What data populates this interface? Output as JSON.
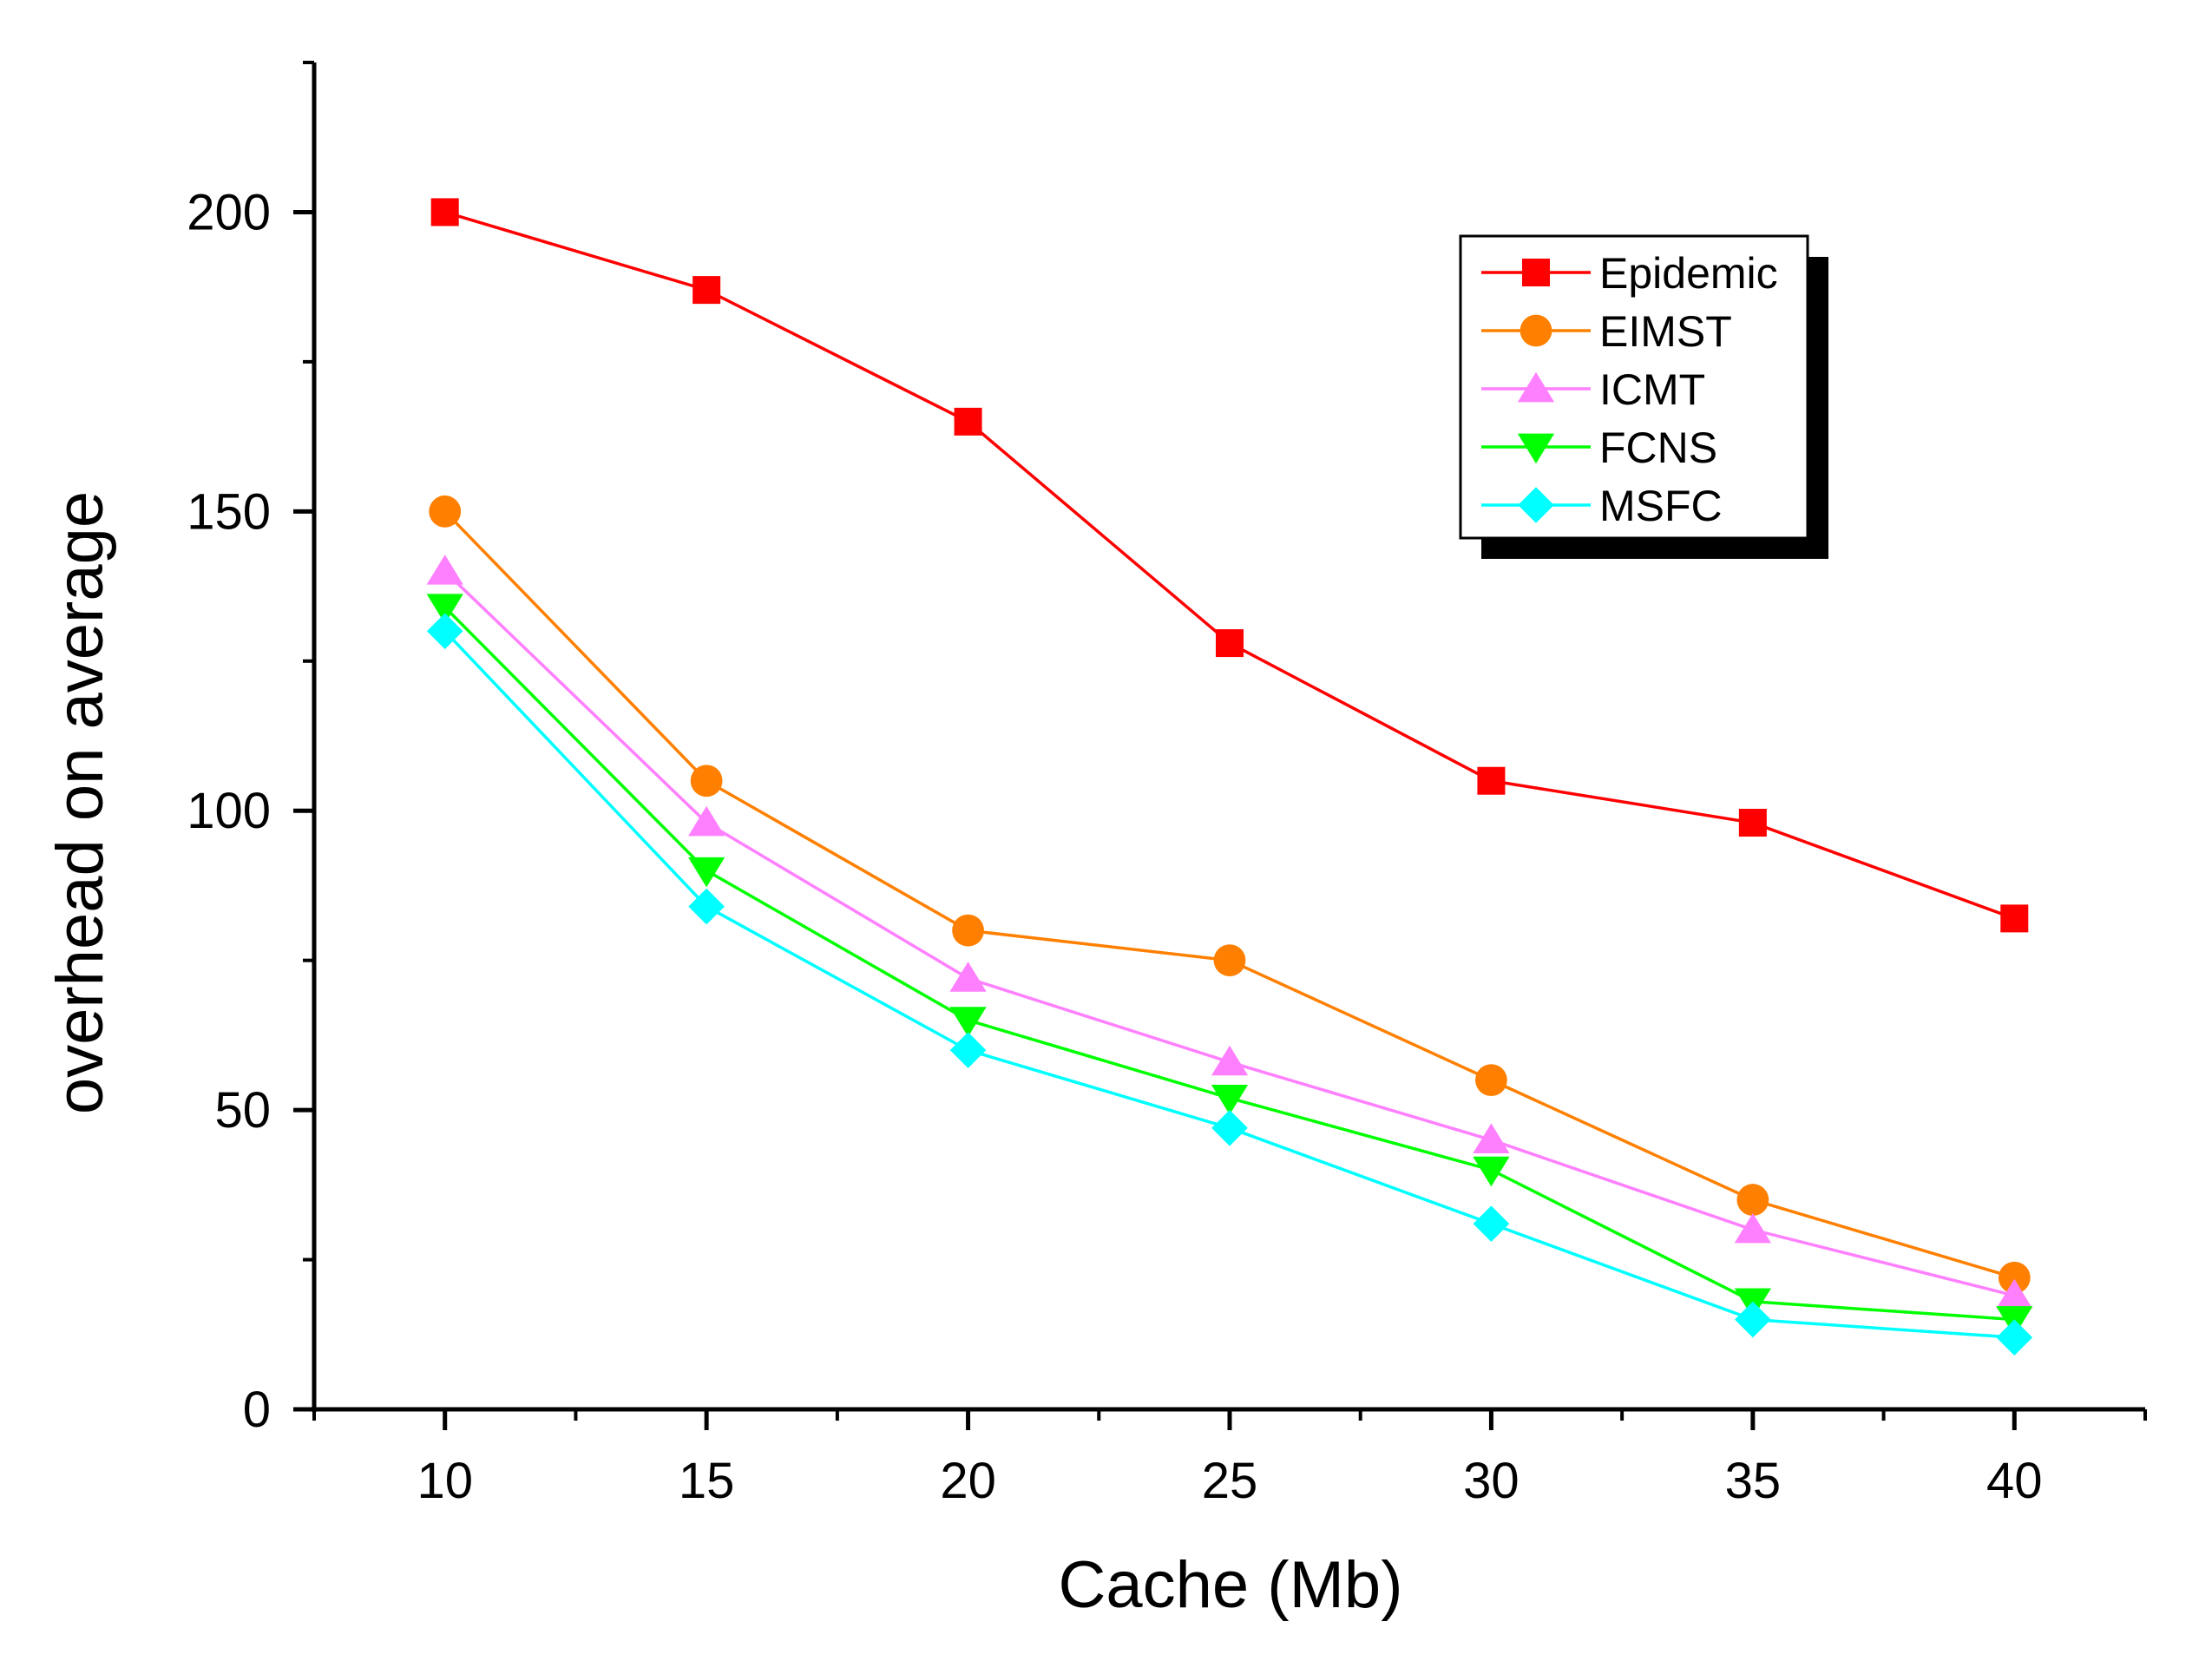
{
  "chart_data": {
    "type": "line",
    "title": "",
    "xlabel": "Cache (Mb)",
    "ylabel": "overhead on average",
    "x": [
      10,
      15,
      20,
      25,
      30,
      35,
      40
    ],
    "xlim": [
      7.5,
      42.5
    ],
    "ylim": [
      0,
      225
    ],
    "xticks": [
      10,
      15,
      20,
      25,
      30,
      35,
      40
    ],
    "yticks": [
      0,
      50,
      100,
      150,
      200
    ],
    "grid": false,
    "legend_position": "top-right",
    "series": [
      {
        "name": "Epidemic",
        "color": "#ff0000",
        "marker": "square",
        "values": [
          200,
          187,
          165,
          128,
          105,
          98,
          82
        ]
      },
      {
        "name": "EIMST",
        "color": "#ff8000",
        "marker": "circle",
        "values": [
          150,
          105,
          80,
          75,
          55,
          35,
          22
        ]
      },
      {
        "name": "ICMT",
        "color": "#ff80ff",
        "marker": "triangle-up",
        "values": [
          140,
          98,
          72,
          58,
          45,
          30,
          19
        ]
      },
      {
        "name": "FCNS",
        "color": "#00ff00",
        "marker": "triangle-down",
        "values": [
          134,
          90,
          65,
          52,
          40,
          18,
          15
        ]
      },
      {
        "name": "MSFC",
        "color": "#00ffff",
        "marker": "diamond",
        "values": [
          130,
          84,
          60,
          47,
          31,
          15,
          12
        ]
      }
    ]
  }
}
